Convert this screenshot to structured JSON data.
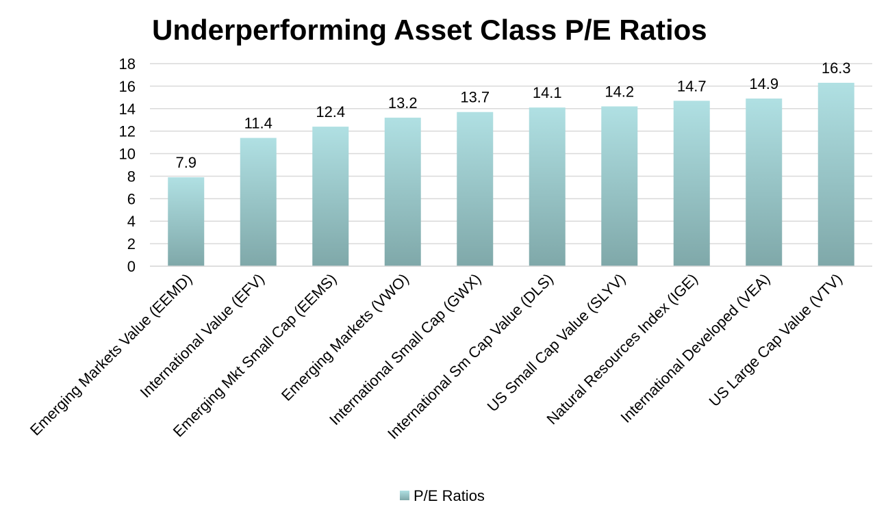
{
  "chart_data": {
    "type": "bar",
    "title": "Underperforming Asset Class P/E Ratios",
    "categories": [
      "Emerging Markets Value (EEMD)",
      "International Value (EFV)",
      "Emerging Mkt Small Cap (EEMS)",
      "Emerging Markets (VWO)",
      "International Small Cap (GWX)",
      "International Sm Cap Value (DLS)",
      "US Small Cap Value (SLYV)",
      "Natural Resources Index (IGE)",
      "International Developed (VEA)",
      "US Large Cap Value (VTV)"
    ],
    "series": [
      {
        "name": "P/E Ratios",
        "values": [
          7.9,
          11.4,
          12.4,
          13.2,
          13.7,
          14.1,
          14.2,
          14.7,
          14.9,
          16.3
        ]
      }
    ],
    "yticks": [
      "0",
      "2",
      "4",
      "6",
      "8",
      "10",
      "12",
      "14",
      "16",
      "18"
    ],
    "ylim": [
      0,
      18
    ],
    "grid": true,
    "legend_position": "bottom",
    "colors": {
      "bar_top": "#b0e0e3",
      "bar_bottom": "#7fa8a9",
      "grid": "#d9d9d9"
    }
  }
}
